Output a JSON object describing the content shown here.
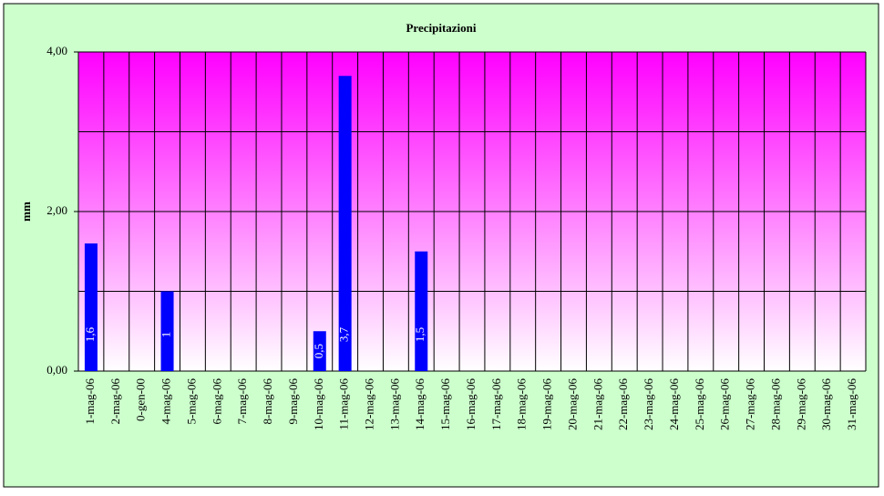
{
  "chart_data": {
    "type": "bar",
    "title": "Precipitazioni",
    "y_label": "mm",
    "categories": [
      "1-mag-06",
      "2-mag-06",
      "0-gen-00",
      "4-mag-06",
      "5-mag-06",
      "6-mag-06",
      "7-mag-06",
      "8-mag-06",
      "9-mag-06",
      "10-mag-06",
      "11-mag-06",
      "12-mag-06",
      "13-mag-06",
      "14-mag-06",
      "15-mag-06",
      "16-mag-06",
      "17-mag-06",
      "18-mag-06",
      "19-mag-06",
      "20-mag-06",
      "21-mag-06",
      "22-mag-06",
      "23-mag-06",
      "24-mag-06",
      "25-mag-06",
      "26-mag-06",
      "27-mag-06",
      "28-mag-06",
      "29-mag-06",
      "30-mag-06",
      "31-mag-06"
    ],
    "values": [
      1.6,
      null,
      null,
      1,
      null,
      null,
      null,
      null,
      null,
      0.5,
      3.7,
      null,
      null,
      1.5,
      null,
      null,
      null,
      null,
      null,
      null,
      null,
      null,
      null,
      null,
      null,
      null,
      null,
      null,
      null,
      null,
      null
    ],
    "value_labels": [
      "1,6",
      null,
      null,
      "1",
      null,
      null,
      null,
      null,
      null,
      "0,5",
      "3,7",
      null,
      null,
      "1,5",
      null,
      null,
      null,
      null,
      null,
      null,
      null,
      null,
      null,
      null,
      null,
      null,
      null,
      null,
      null,
      null,
      null
    ],
    "color": "#0000ff",
    "ylim": [
      0,
      4
    ],
    "yticks": [
      {
        "value": 0,
        "label": "0,00"
      },
      {
        "value": 2,
        "label": "2,00"
      },
      {
        "value": 4,
        "label": "4,00"
      }
    ],
    "ygrid": [
      0,
      1,
      2,
      3,
      4
    ],
    "grid": true
  }
}
